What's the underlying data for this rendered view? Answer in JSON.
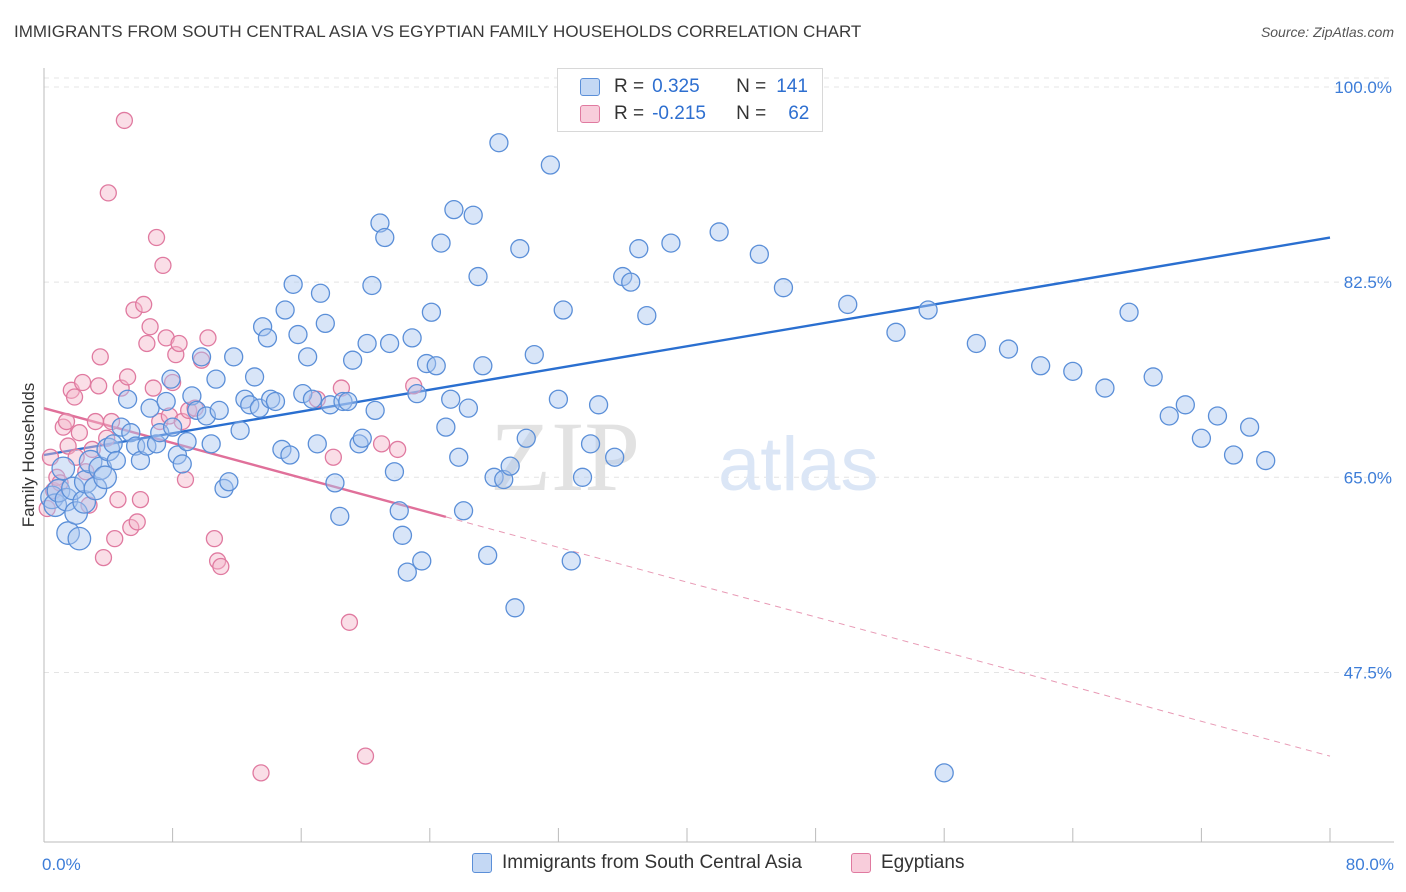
{
  "title": "IMMIGRANTS FROM SOUTH CENTRAL ASIA VS EGYPTIAN FAMILY HOUSEHOLDS CORRELATION CHART",
  "source": "Source: ZipAtlas.com",
  "watermark": {
    "zip": "ZIP",
    "atlas": "atlas"
  },
  "colors": {
    "blue": "#5b8fd8",
    "blue_fill": "#a9c6ef",
    "pink": "#e07aa0",
    "pink_fill": "#f4b5ca",
    "blue_line": "#2a6fd0",
    "pink_line": "#e0709a"
  },
  "legend": {
    "r_label": "R =",
    "n_label": "N =",
    "rows": [
      {
        "r": "0.325",
        "n": "141",
        "color": "#5b8fd8"
      },
      {
        "r": "-0.215",
        "n": "62",
        "color": "#e07aa0"
      }
    ]
  },
  "chart_data": {
    "type": "scatter",
    "title": "IMMIGRANTS FROM SOUTH CENTRAL ASIA VS EGYPTIAN FAMILY HOUSEHOLDS CORRELATION CHART",
    "xlabel": "",
    "ylabel": "Family Households",
    "xlim": [
      0,
      80
    ],
    "ylim": [
      32.3,
      101.7
    ],
    "x_tick_labels": [
      "0.0%",
      "80.0%"
    ],
    "y_ticks": [
      47.5,
      65.0,
      82.5,
      100.0
    ],
    "y_tick_labels": [
      "47.5%",
      "65.0%",
      "82.5%",
      "100.0%"
    ],
    "grid": true,
    "legend_position": "top-center",
    "series": [
      {
        "name": "Immigrants from South Central Asia",
        "color": "#5b8fd8",
        "trend": {
          "x": [
            0,
            80
          ],
          "y": [
            67.0,
            86.5
          ],
          "dashed_extension": false
        },
        "points": [
          [
            0.5,
            63.2
          ],
          [
            0.7,
            62.5
          ],
          [
            0.9,
            63.8
          ],
          [
            1.2,
            65.8
          ],
          [
            1.4,
            63.0
          ],
          [
            1.5,
            60.0
          ],
          [
            1.8,
            64.0
          ],
          [
            2.0,
            61.8
          ],
          [
            2.2,
            59.5
          ],
          [
            2.5,
            62.8
          ],
          [
            2.6,
            64.6
          ],
          [
            2.9,
            66.4
          ],
          [
            3.2,
            64.0
          ],
          [
            3.5,
            65.8
          ],
          [
            3.8,
            65.0
          ],
          [
            4.0,
            67.5
          ],
          [
            4.3,
            68.0
          ],
          [
            4.5,
            66.5
          ],
          [
            4.8,
            69.5
          ],
          [
            5.2,
            72.0
          ],
          [
            5.4,
            69.0
          ],
          [
            5.7,
            67.8
          ],
          [
            6.0,
            66.5
          ],
          [
            6.4,
            67.8
          ],
          [
            6.6,
            71.2
          ],
          [
            7.0,
            68.0
          ],
          [
            7.2,
            69.0
          ],
          [
            7.6,
            71.8
          ],
          [
            7.9,
            73.8
          ],
          [
            8.0,
            69.5
          ],
          [
            8.3,
            67.0
          ],
          [
            8.6,
            66.2
          ],
          [
            8.9,
            68.2
          ],
          [
            9.2,
            72.3
          ],
          [
            9.5,
            71.0
          ],
          [
            9.8,
            75.8
          ],
          [
            10.1,
            70.5
          ],
          [
            10.4,
            68.0
          ],
          [
            10.7,
            73.8
          ],
          [
            10.9,
            71.0
          ],
          [
            11.2,
            64.0
          ],
          [
            11.5,
            64.6
          ],
          [
            11.8,
            75.8
          ],
          [
            12.2,
            69.2
          ],
          [
            12.5,
            72.0
          ],
          [
            12.8,
            71.5
          ],
          [
            13.1,
            74.0
          ],
          [
            13.4,
            71.2
          ],
          [
            13.6,
            78.5
          ],
          [
            13.9,
            77.5
          ],
          [
            14.1,
            72.0
          ],
          [
            14.4,
            71.8
          ],
          [
            14.8,
            67.5
          ],
          [
            15.0,
            80.0
          ],
          [
            15.3,
            67.0
          ],
          [
            15.5,
            82.3
          ],
          [
            15.8,
            77.8
          ],
          [
            16.1,
            72.5
          ],
          [
            16.4,
            75.8
          ],
          [
            16.7,
            72.0
          ],
          [
            17.0,
            68.0
          ],
          [
            17.2,
            81.5
          ],
          [
            17.5,
            78.8
          ],
          [
            17.8,
            71.5
          ],
          [
            18.1,
            64.5
          ],
          [
            18.4,
            61.5
          ],
          [
            18.6,
            71.8
          ],
          [
            18.9,
            71.8
          ],
          [
            19.2,
            75.5
          ],
          [
            19.6,
            68.0
          ],
          [
            19.8,
            68.5
          ],
          [
            20.1,
            77.0
          ],
          [
            20.4,
            82.2
          ],
          [
            20.6,
            71.0
          ],
          [
            20.9,
            87.8
          ],
          [
            21.2,
            86.5
          ],
          [
            21.5,
            77.0
          ],
          [
            21.8,
            65.5
          ],
          [
            22.1,
            62.0
          ],
          [
            22.3,
            59.8
          ],
          [
            22.6,
            56.5
          ],
          [
            22.9,
            77.5
          ],
          [
            23.2,
            72.5
          ],
          [
            23.5,
            57.5
          ],
          [
            23.8,
            75.2
          ],
          [
            24.1,
            79.8
          ],
          [
            24.4,
            75.0
          ],
          [
            24.7,
            86.0
          ],
          [
            25.0,
            69.5
          ],
          [
            25.3,
            72.0
          ],
          [
            25.5,
            89.0
          ],
          [
            25.8,
            66.8
          ],
          [
            26.1,
            62.0
          ],
          [
            26.4,
            71.2
          ],
          [
            26.7,
            88.5
          ],
          [
            27.0,
            83.0
          ],
          [
            27.3,
            75.0
          ],
          [
            27.6,
            58.0
          ],
          [
            28.0,
            65.0
          ],
          [
            28.3,
            95.0
          ],
          [
            28.6,
            64.8
          ],
          [
            29.0,
            66.0
          ],
          [
            29.3,
            53.3
          ],
          [
            29.6,
            85.5
          ],
          [
            30.0,
            68.5
          ],
          [
            30.5,
            76.0
          ],
          [
            31.5,
            93.0
          ],
          [
            32.0,
            72.0
          ],
          [
            32.3,
            80.0
          ],
          [
            32.8,
            57.5
          ],
          [
            33.5,
            65.0
          ],
          [
            34.0,
            68.0
          ],
          [
            34.5,
            71.5
          ],
          [
            35.0,
            97.0
          ],
          [
            35.5,
            66.8
          ],
          [
            36.0,
            83.0
          ],
          [
            36.5,
            82.5
          ],
          [
            37.0,
            85.5
          ],
          [
            37.5,
            79.5
          ],
          [
            39.0,
            86.0
          ],
          [
            42.0,
            87.0
          ],
          [
            44.5,
            85.0
          ],
          [
            46.0,
            82.0
          ],
          [
            50.0,
            80.5
          ],
          [
            53.0,
            78.0
          ],
          [
            55.0,
            80.0
          ],
          [
            56.0,
            38.5
          ],
          [
            58.0,
            77.0
          ],
          [
            60.0,
            76.5
          ],
          [
            62.0,
            75.0
          ],
          [
            64.0,
            74.5
          ],
          [
            66.0,
            73.0
          ],
          [
            67.5,
            79.8
          ],
          [
            69.0,
            74.0
          ],
          [
            70.0,
            70.5
          ],
          [
            71.0,
            71.5
          ],
          [
            72.0,
            68.5
          ],
          [
            73.0,
            70.5
          ],
          [
            74.0,
            67.0
          ],
          [
            75.0,
            69.5
          ],
          [
            76.0,
            66.5
          ]
        ]
      },
      {
        "name": "Egyptians",
        "color": "#e07aa0",
        "trend": {
          "x": [
            0,
            80
          ],
          "y": [
            71.2,
            40.0
          ],
          "solid_until_x": 25
        },
        "points": [
          [
            0.2,
            62.2
          ],
          [
            0.4,
            66.8
          ],
          [
            0.6,
            63.8
          ],
          [
            0.8,
            65.0
          ],
          [
            1.0,
            64.5
          ],
          [
            1.2,
            69.5
          ],
          [
            1.4,
            70.0
          ],
          [
            1.5,
            67.8
          ],
          [
            1.7,
            72.8
          ],
          [
            1.9,
            72.2
          ],
          [
            2.0,
            66.8
          ],
          [
            2.2,
            69.0
          ],
          [
            2.4,
            73.5
          ],
          [
            2.6,
            65.5
          ],
          [
            2.8,
            62.5
          ],
          [
            3.0,
            67.5
          ],
          [
            3.2,
            70.0
          ],
          [
            3.4,
            73.2
          ],
          [
            3.5,
            75.8
          ],
          [
            3.7,
            57.8
          ],
          [
            3.9,
            68.5
          ],
          [
            4.0,
            90.5
          ],
          [
            4.2,
            70.0
          ],
          [
            4.4,
            59.5
          ],
          [
            4.6,
            63.0
          ],
          [
            4.8,
            73.0
          ],
          [
            5.0,
            97.0
          ],
          [
            5.2,
            74.0
          ],
          [
            5.4,
            60.5
          ],
          [
            5.6,
            80.0
          ],
          [
            5.8,
            61.0
          ],
          [
            6.0,
            63.0
          ],
          [
            6.2,
            80.5
          ],
          [
            6.4,
            77.0
          ],
          [
            6.6,
            78.5
          ],
          [
            6.8,
            73.0
          ],
          [
            7.0,
            86.5
          ],
          [
            7.2,
            70.0
          ],
          [
            7.4,
            84.0
          ],
          [
            7.6,
            77.5
          ],
          [
            7.8,
            70.5
          ],
          [
            8.0,
            73.5
          ],
          [
            8.2,
            76.0
          ],
          [
            8.4,
            77.0
          ],
          [
            8.6,
            70.0
          ],
          [
            8.8,
            64.8
          ],
          [
            9.0,
            71.0
          ],
          [
            9.4,
            71.2
          ],
          [
            9.8,
            75.5
          ],
          [
            10.2,
            77.5
          ],
          [
            10.6,
            59.5
          ],
          [
            10.8,
            57.5
          ],
          [
            11.0,
            57.0
          ],
          [
            13.5,
            38.5
          ],
          [
            17.0,
            72.0
          ],
          [
            18.0,
            66.8
          ],
          [
            18.5,
            73.0
          ],
          [
            19.0,
            52.0
          ],
          [
            20.0,
            40.0
          ],
          [
            21.0,
            68.0
          ],
          [
            22.0,
            67.5
          ],
          [
            23.0,
            73.2
          ]
        ]
      }
    ]
  },
  "bottom_legend": [
    {
      "label": "Immigrants from South Central Asia",
      "color": "#5b8fd8"
    },
    {
      "label": "Egyptians",
      "color": "#e07aa0"
    }
  ]
}
